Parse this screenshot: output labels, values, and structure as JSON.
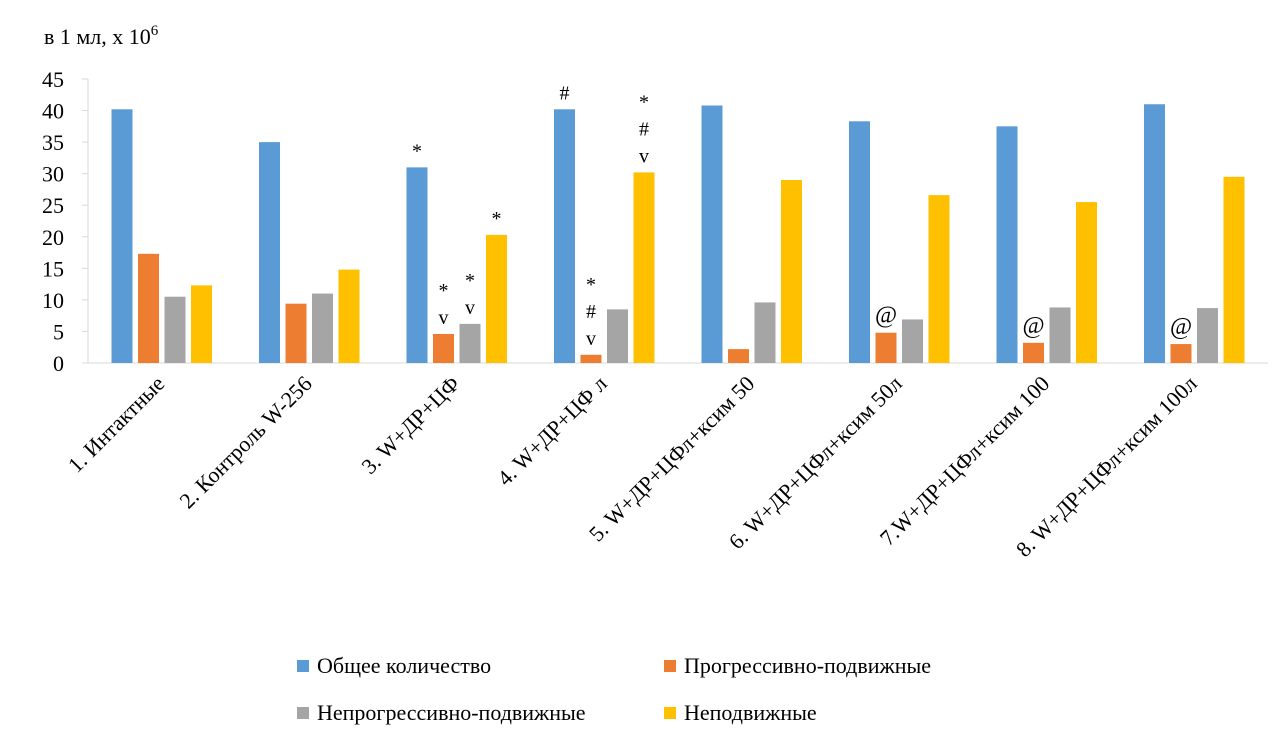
{
  "chart_data": {
    "type": "bar",
    "title": "",
    "ylabel": "в 1 мл, х 10",
    "ylabel_superscript": "6",
    "xlabel": "",
    "ylim": [
      0,
      45
    ],
    "yticks": [
      0,
      5,
      10,
      15,
      20,
      25,
      30,
      35,
      40,
      45
    ],
    "grid": false,
    "legend_position": "bottom",
    "categories": [
      "1. Интактные",
      "2. Контроль W-256",
      "3. W+ДР+ЦФ",
      "4. W+ДР+ЦФ л",
      "5. W+ДР+ЦФл+ксим 50",
      "6. W+ДР+ЦФл+ксим 50л",
      "7.W+ДР+ЦФл+ксим 100",
      "8. W+ДР+ЦФл+ксим 100л"
    ],
    "series": [
      {
        "name": "Общее количество",
        "color": "#5B9BD5",
        "values": [
          40.2,
          35.0,
          31.0,
          40.2,
          40.8,
          38.3,
          37.5,
          41.0
        ]
      },
      {
        "name": "Прогрессивно-подвижные",
        "color": "#ED7D31",
        "values": [
          17.3,
          9.4,
          4.6,
          1.3,
          2.2,
          4.8,
          3.2,
          3.0
        ]
      },
      {
        "name": "Непрогрессивно-подвижные",
        "color": "#A5A5A5",
        "values": [
          10.5,
          11.0,
          6.2,
          8.5,
          9.6,
          6.9,
          8.8,
          8.7
        ]
      },
      {
        "name": "Неподвижные",
        "color": "#FFC000",
        "values": [
          12.3,
          14.8,
          20.3,
          30.2,
          29.0,
          26.6,
          25.5,
          29.5
        ]
      }
    ],
    "annotations": [
      {
        "category": 2,
        "series": 0,
        "lines": [
          "*"
        ]
      },
      {
        "category": 2,
        "series": 1,
        "lines": [
          "*",
          "v"
        ]
      },
      {
        "category": 2,
        "series": 2,
        "lines": [
          "*",
          "v"
        ]
      },
      {
        "category": 2,
        "series": 3,
        "lines": [
          "*"
        ]
      },
      {
        "category": 3,
        "series": 0,
        "lines": [
          "#"
        ]
      },
      {
        "category": 3,
        "series": 1,
        "lines": [
          "*",
          "#",
          "v"
        ]
      },
      {
        "category": 3,
        "series": 3,
        "lines": [
          "*",
          "#",
          "v"
        ]
      },
      {
        "category": 5,
        "series": 1,
        "lines": [
          "@"
        ]
      },
      {
        "category": 6,
        "series": 1,
        "lines": [
          "@"
        ]
      },
      {
        "category": 7,
        "series": 1,
        "lines": [
          "@"
        ]
      }
    ]
  }
}
